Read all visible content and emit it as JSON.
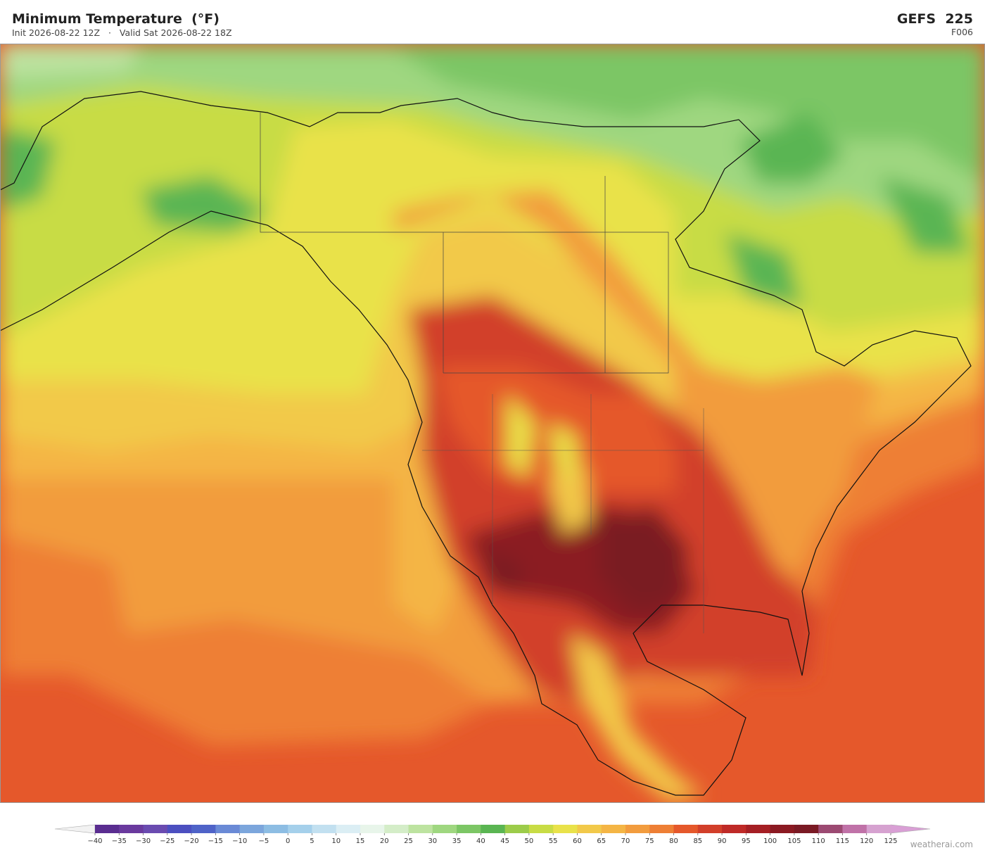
{
  "header": {
    "title": "Minimum Temperature  (°F)",
    "init": "Init 2026-08-22 12Z",
    "separator": "·",
    "valid": "Valid Sat 2026-08-22 18Z",
    "model": "GEFS  225",
    "forecast_hour": "F006"
  },
  "colorbar": {
    "ticks": [
      {
        "value": -40,
        "label": "−40"
      },
      {
        "value": -35,
        "label": "−35"
      },
      {
        "value": -30,
        "label": "−30"
      },
      {
        "value": -25,
        "label": "−25"
      },
      {
        "value": -20,
        "label": "−20"
      },
      {
        "value": -15,
        "label": "−15"
      },
      {
        "value": -10,
        "label": "−10"
      },
      {
        "value": -5,
        "label": "−5"
      },
      0,
      5,
      10,
      15,
      20,
      25,
      30,
      35,
      40,
      45,
      50,
      55,
      60,
      65,
      70,
      75,
      80,
      85,
      90,
      95,
      100,
      105,
      110,
      115,
      120,
      125
    ],
    "colors": [
      "#5a2d90",
      "#6a3a9e",
      "#6a4bb0",
      "#4c4fc0",
      "#4f63c8",
      "#6a8ad6",
      "#7ca6dc",
      "#8dbde3",
      "#a5d0eb",
      "#c2e0f0",
      "#dbeef4",
      "#e8f5ea",
      "#d4edc8",
      "#bde3a0",
      "#9fd780",
      "#7cc665",
      "#5ab552",
      "#9ccc4a",
      "#c8dc45",
      "#e9e24a",
      "#f2c94a",
      "#f4b545",
      "#f29c3e",
      "#ee7f35",
      "#e5582b",
      "#d23f2a",
      "#bf2a27",
      "#a51f24",
      "#8b1a22",
      "#7a1a24",
      "#9c4a72",
      "#c072a8",
      "#d6a2d0"
    ],
    "under_color": "#f2f2f2",
    "over_color": "#d99fd5"
  },
  "attribution": "weatherai.com"
}
